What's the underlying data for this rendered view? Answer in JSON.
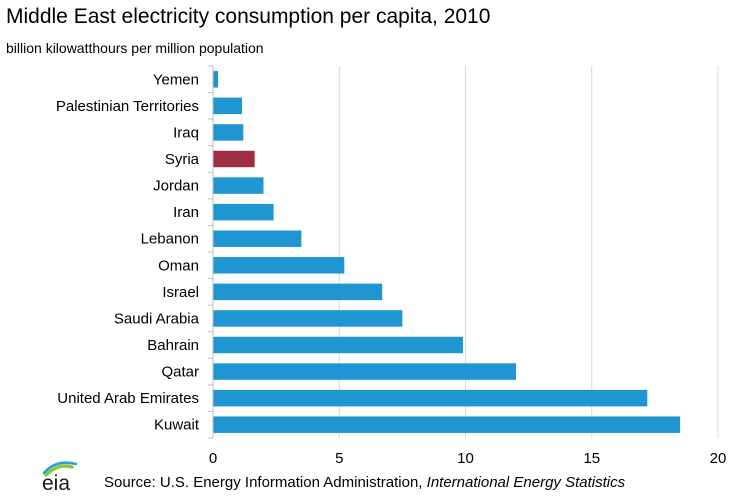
{
  "title": "Middle East electricity consumption per capita, 2010",
  "subtitle": "billion kilowatthours  per million population",
  "logo_text": "eia",
  "source": {
    "prefix": "Source: U.S. Energy Information Administration, ",
    "publication": "International Energy Statistics"
  },
  "colors": {
    "bar": "#1f95d2",
    "highlight": "#9e2f43",
    "grid": "#d9d9d9",
    "axis": "#bfbfbf"
  },
  "chart_data": {
    "type": "bar",
    "orientation": "horizontal",
    "title": "Middle East electricity consumption per capita, 2010",
    "xlabel": "",
    "ylabel": "",
    "xlim": [
      0,
      20
    ],
    "x_ticks": [
      0,
      5,
      10,
      15,
      20
    ],
    "grid": "vertical",
    "highlighted_category": "Syria",
    "categories": [
      "Yemen",
      "Palestinian Territories",
      "Iraq",
      "Syria",
      "Jordan",
      "Iran",
      "Lebanon",
      "Oman",
      "Israel",
      "Saudi Arabia",
      "Bahrain",
      "Qatar",
      "United Arab Emirates",
      "Kuwait"
    ],
    "values": [
      0.2,
      1.15,
      1.2,
      1.65,
      2.0,
      2.4,
      3.5,
      5.2,
      6.7,
      7.5,
      9.9,
      12.0,
      17.2,
      18.5
    ]
  }
}
